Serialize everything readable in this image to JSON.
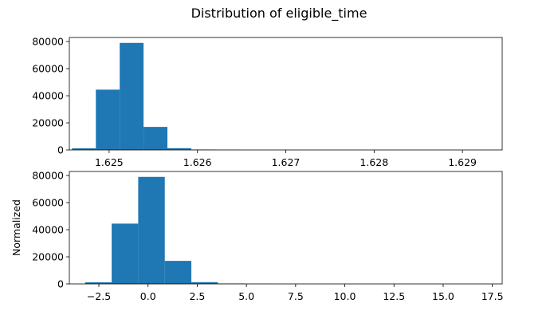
{
  "figure": {
    "title": "Distribution of eligible_time"
  },
  "chart_data": [
    {
      "type": "bar",
      "subtype": "histogram",
      "title": "",
      "xlabel": "",
      "ylabel": "",
      "xlim": [
        1.62455,
        1.62945
      ],
      "ylim": [
        0,
        83000
      ],
      "bar_color": "#1f77b4",
      "grid": false,
      "x_ticks": [
        1.625,
        1.626,
        1.627,
        1.628,
        1.629
      ],
      "x_tick_labels": [
        "1.625",
        "1.626",
        "1.627",
        "1.628",
        "1.629"
      ],
      "y_ticks": [
        0,
        20000,
        40000,
        60000,
        80000
      ],
      "y_tick_labels": [
        "0",
        "20000",
        "40000",
        "60000",
        "80000"
      ],
      "bins": [
        {
          "x0": 1.62458,
          "x1": 1.62485,
          "value": 1200
        },
        {
          "x0": 1.62485,
          "x1": 1.62512,
          "value": 44500
        },
        {
          "x0": 1.62512,
          "x1": 1.62539,
          "value": 79000
        },
        {
          "x0": 1.62539,
          "x1": 1.62566,
          "value": 17000
        },
        {
          "x0": 1.62566,
          "x1": 1.62593,
          "value": 1300
        },
        {
          "x0": 1.62593,
          "x1": 1.6262,
          "value": 300
        },
        {
          "x0": 1.6262,
          "x1": 1.62647,
          "value": 80
        },
        {
          "x0": 1.62647,
          "x1": 1.62674,
          "value": 30
        },
        {
          "x0": 1.62674,
          "x1": 1.62701,
          "value": 20
        },
        {
          "x0": 1.62701,
          "x1": 1.62728,
          "value": 10
        },
        {
          "x0": 1.62728,
          "x1": 1.62755,
          "value": 8
        },
        {
          "x0": 1.62755,
          "x1": 1.62782,
          "value": 6
        },
        {
          "x0": 1.62782,
          "x1": 1.62809,
          "value": 5
        },
        {
          "x0": 1.62809,
          "x1": 1.62836,
          "value": 4
        },
        {
          "x0": 1.62836,
          "x1": 1.62863,
          "value": 3
        },
        {
          "x0": 1.62863,
          "x1": 1.6289,
          "value": 2
        },
        {
          "x0": 1.6289,
          "x1": 1.62917,
          "value": 2
        },
        {
          "x0": 1.62917,
          "x1": 1.62944,
          "value": 1
        }
      ]
    },
    {
      "type": "bar",
      "subtype": "histogram",
      "title": "",
      "xlabel": "",
      "ylabel": "Normalized",
      "xlim": [
        -4.0,
        18.0
      ],
      "ylim": [
        0,
        83000
      ],
      "bar_color": "#1f77b4",
      "grid": false,
      "x_ticks": [
        -2.5,
        0.0,
        2.5,
        5.0,
        7.5,
        10.0,
        12.5,
        15.0,
        17.5
      ],
      "x_tick_labels": [
        "−2.5",
        "0.0",
        "2.5",
        "5.0",
        "7.5",
        "10.0",
        "12.5",
        "15.0",
        "17.5"
      ],
      "y_ticks": [
        0,
        20000,
        40000,
        60000,
        80000
      ],
      "y_tick_labels": [
        "0",
        "20000",
        "40000",
        "60000",
        "80000"
      ],
      "bins": [
        {
          "x0": -3.2,
          "x1": -1.85,
          "value": 1200
        },
        {
          "x0": -1.85,
          "x1": -0.5,
          "value": 44500
        },
        {
          "x0": -0.5,
          "x1": 0.85,
          "value": 79000
        },
        {
          "x0": 0.85,
          "x1": 2.2,
          "value": 17000
        },
        {
          "x0": 2.2,
          "x1": 3.55,
          "value": 1300
        },
        {
          "x0": 3.55,
          "x1": 4.9,
          "value": 300
        },
        {
          "x0": 4.9,
          "x1": 6.25,
          "value": 80
        },
        {
          "x0": 6.25,
          "x1": 7.6,
          "value": 30
        },
        {
          "x0": 7.6,
          "x1": 8.95,
          "value": 20
        },
        {
          "x0": 8.95,
          "x1": 10.3,
          "value": 10
        },
        {
          "x0": 10.3,
          "x1": 11.65,
          "value": 8
        },
        {
          "x0": 11.65,
          "x1": 13.0,
          "value": 6
        },
        {
          "x0": 13.0,
          "x1": 14.35,
          "value": 5
        },
        {
          "x0": 14.35,
          "x1": 15.7,
          "value": 4
        },
        {
          "x0": 15.7,
          "x1": 17.05,
          "value": 2
        }
      ]
    }
  ]
}
